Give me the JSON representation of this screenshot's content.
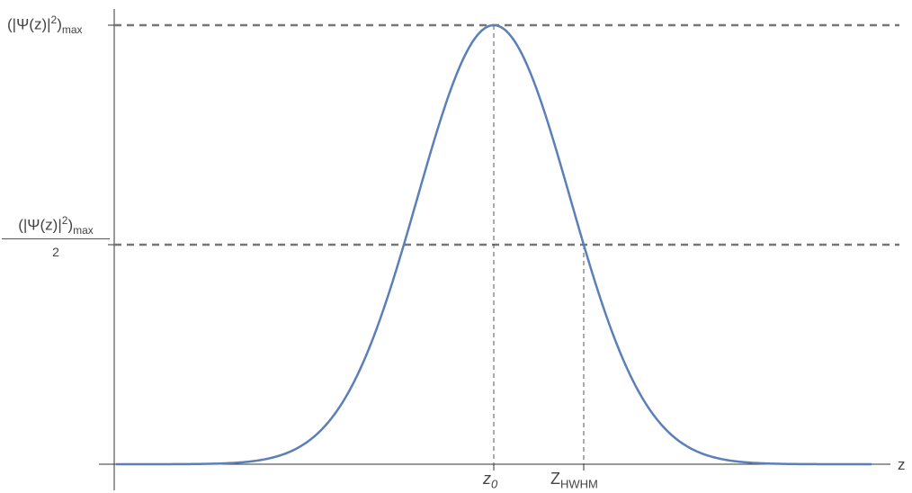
{
  "chart_data": {
    "type": "line",
    "series": [
      {
        "function": "gaussian",
        "center": 0,
        "hwhm": 1,
        "peak": 1,
        "x_range": [
          -4.2,
          4.2
        ],
        "color": "#5b7fb9"
      }
    ],
    "reference_lines": {
      "horizontal": [
        {
          "y": 1,
          "style": "dashed",
          "color": "#777777"
        },
        {
          "y": 0.5,
          "style": "dashed",
          "color": "#777777"
        }
      ],
      "vertical": [
        {
          "x": 0,
          "style": "dashed",
          "color": "#555555"
        },
        {
          "x": 1,
          "style": "dashed",
          "color": "#555555"
        }
      ]
    },
    "ylim": [
      0,
      1
    ],
    "xlim": [
      -4.2,
      4.2
    ],
    "grid": false
  },
  "labels": {
    "y_max": {
      "main": "(|Ψ(z)|",
      "sup": "2",
      "close": ")",
      "sub": "max"
    },
    "y_half": {
      "num_main": "(|Ψ(z)|",
      "num_sup": "2",
      "num_close": ")",
      "num_sub": "max",
      "den": "2"
    },
    "x_peak": {
      "main": "z",
      "sub": "0"
    },
    "x_hwhm": {
      "main": "Z",
      "sub": "HWHM"
    },
    "x_axis": "z"
  }
}
